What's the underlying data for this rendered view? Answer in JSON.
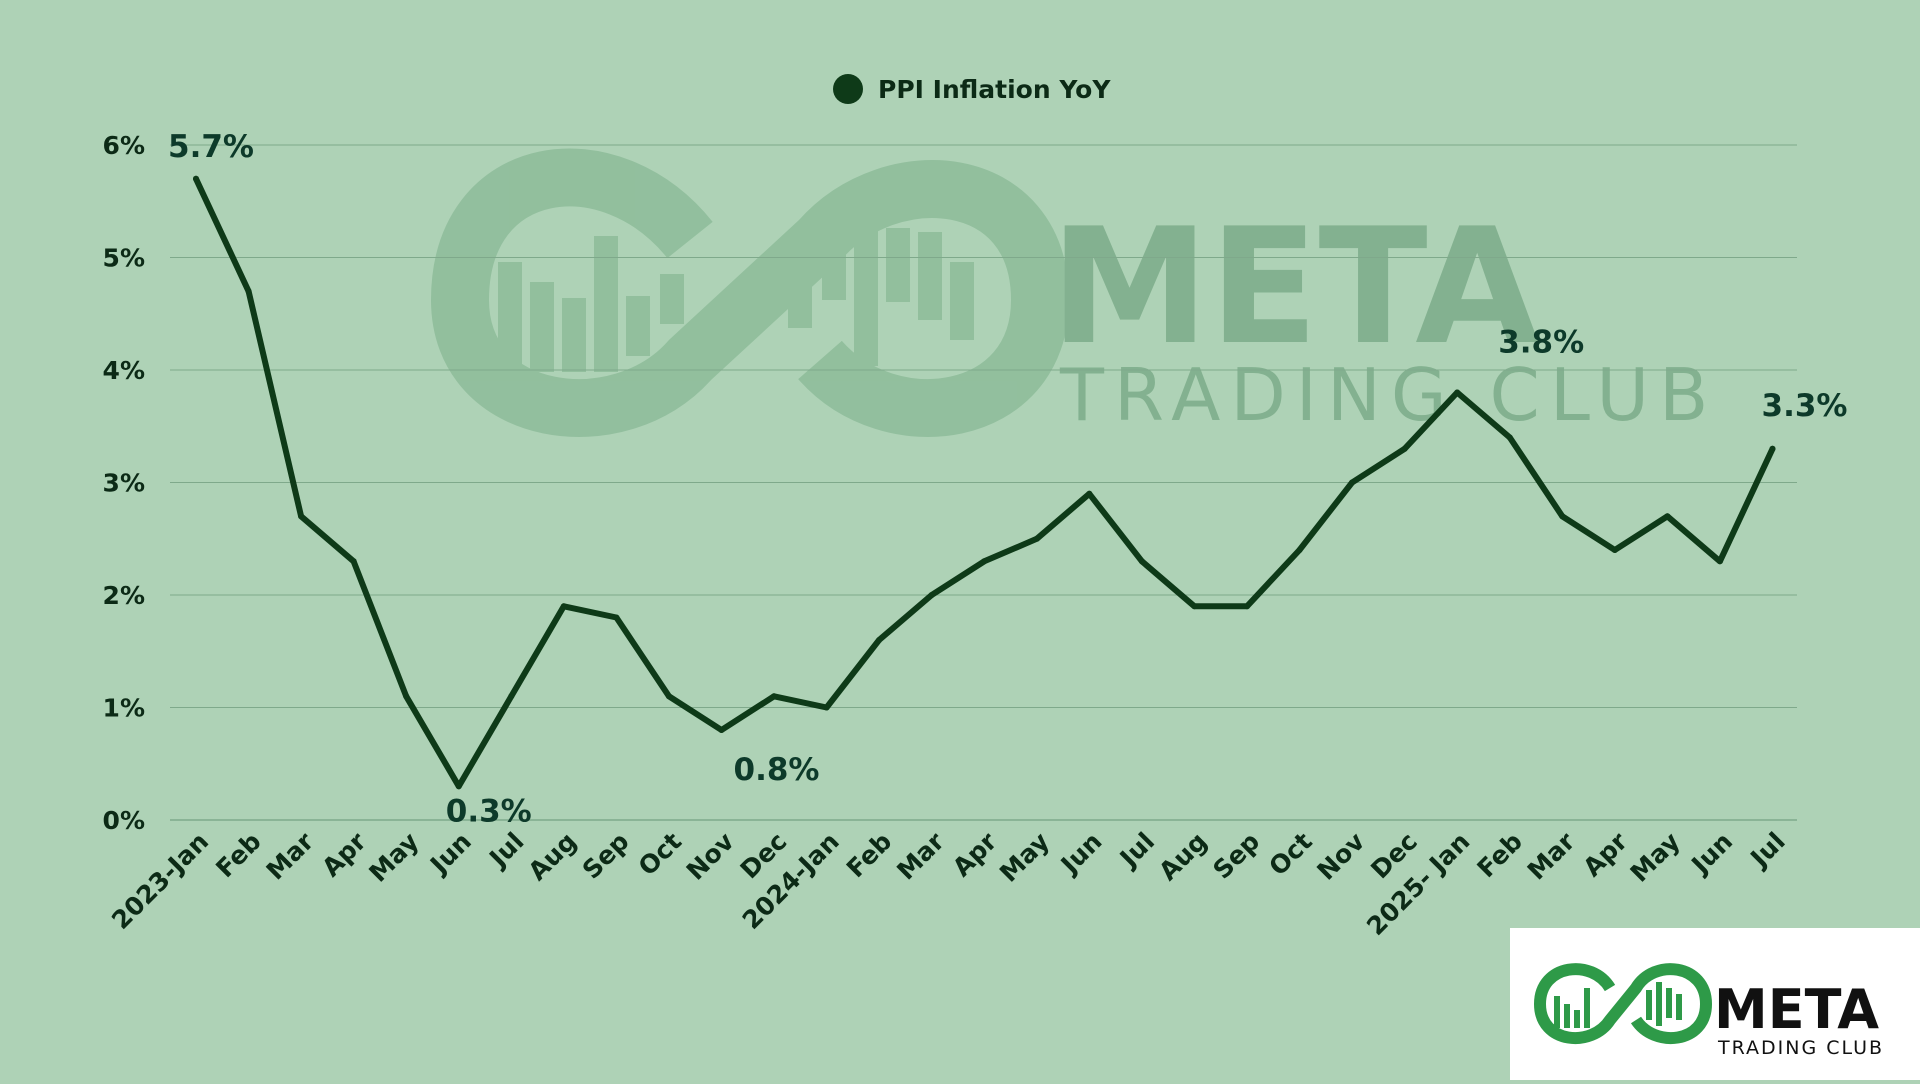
{
  "chart_data": {
    "type": "line",
    "categories": [
      "2023-Jan",
      "Feb",
      "Mar",
      "Apr",
      "May",
      "Jun",
      "Jul",
      "Aug",
      "Sep",
      "Oct",
      "Nov",
      "Dec",
      "2024-Jan",
      "Feb",
      "Mar",
      "Apr",
      "May",
      "Jun",
      "Jul",
      "Aug",
      "Sep",
      "Oct",
      "Nov",
      "Dec",
      "2025- Jan",
      "Feb",
      "Mar",
      "Apr",
      "May",
      "Jun",
      "Jul"
    ],
    "series": [
      {
        "name": "PPI Inflation YoY",
        "color": "#0e3a18",
        "values": [
          5.7,
          4.7,
          2.7,
          2.3,
          1.1,
          0.3,
          1.1,
          1.9,
          1.8,
          1.1,
          0.8,
          1.1,
          1.0,
          1.6,
          2.0,
          2.3,
          2.5,
          2.9,
          2.3,
          1.9,
          1.9,
          2.4,
          3.0,
          3.3,
          3.8,
          3.4,
          2.7,
          2.4,
          2.7,
          2.3,
          3.3
        ]
      }
    ],
    "ylim": [
      0,
      6
    ],
    "yticks": [
      0,
      1,
      2,
      3,
      4,
      5,
      6
    ],
    "ytick_labels": [
      "0%",
      "1%",
      "2%",
      "3%",
      "4%",
      "5%",
      "6%"
    ],
    "grid": true,
    "legend_position": "top-center",
    "annotations": [
      {
        "index": 0,
        "text": "5.7%"
      },
      {
        "index": 5,
        "text": "0.3%"
      },
      {
        "index": 10,
        "text": "0.8%"
      },
      {
        "index": 24,
        "text": "3.8%"
      },
      {
        "index": 30,
        "text": "3.3%"
      }
    ],
    "background_color": "#aed2b6",
    "grid_color": "#7fa98b"
  },
  "watermark": {
    "brand": "META",
    "tagline": "TRADING CLUB"
  },
  "logo": {
    "brand": "META",
    "tagline": "TRADING CLUB",
    "accent": "#2e9a48"
  }
}
